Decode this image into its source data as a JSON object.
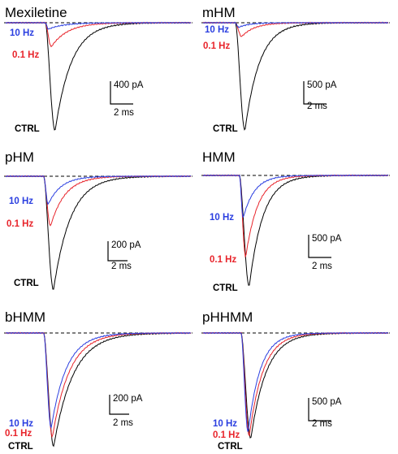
{
  "colors": {
    "ctrl": "#000000",
    "hz01": "#e8242b",
    "hz10": "#2b3fe0",
    "baseline": "#000000"
  },
  "condition_labels": {
    "hz10": "10 Hz",
    "hz01": "0.1 Hz",
    "ctrl": "CTRL"
  },
  "chart_data": [
    {
      "type": "line",
      "title": "Mexiletine",
      "scalebar": {
        "current": "400 pA",
        "time": "2 ms"
      },
      "series": [
        {
          "name": "CTRL",
          "peak_pA": -1350
        },
        {
          "name": "0.1 Hz",
          "peak_pA": -300
        },
        {
          "name": "10 Hz",
          "peak_pA": -80
        }
      ]
    },
    {
      "type": "line",
      "title": "mHM",
      "scalebar": {
        "current": "500 pA",
        "time": "2 ms"
      },
      "series": [
        {
          "name": "CTRL",
          "peak_pA": -1400
        },
        {
          "name": "0.1 Hz",
          "peak_pA": -180
        },
        {
          "name": "10 Hz",
          "peak_pA": -60
        }
      ]
    },
    {
      "type": "line",
      "title": "pHM",
      "scalebar": {
        "current": "200 pA",
        "time": "2 ms"
      },
      "series": [
        {
          "name": "CTRL",
          "peak_pA": -730
        },
        {
          "name": "0.1 Hz",
          "peak_pA": -320
        },
        {
          "name": "10 Hz",
          "peak_pA": -180
        }
      ]
    },
    {
      "type": "line",
      "title": "HMM",
      "scalebar": {
        "current": "500 pA",
        "time": "2 ms"
      },
      "series": [
        {
          "name": "CTRL",
          "peak_pA": -1250
        },
        {
          "name": "0.1 Hz",
          "peak_pA": -920
        },
        {
          "name": "10 Hz",
          "peak_pA": -480
        }
      ]
    },
    {
      "type": "line",
      "title": "bHMM",
      "scalebar": {
        "current": "200 pA",
        "time": "2 ms"
      },
      "series": [
        {
          "name": "CTRL",
          "peak_pA": -740
        },
        {
          "name": "0.1 Hz",
          "peak_pA": -680
        },
        {
          "name": "10 Hz",
          "peak_pA": -620
        }
      ]
    },
    {
      "type": "line",
      "title": "pHHMM",
      "scalebar": {
        "current": "500 pA",
        "time": "2 ms"
      },
      "series": [
        {
          "name": "CTRL",
          "peak_pA": -1200
        },
        {
          "name": "0.1 Hz",
          "peak_pA": -1170
        },
        {
          "name": "10 Hz",
          "peak_pA": -1130
        }
      ]
    }
  ]
}
